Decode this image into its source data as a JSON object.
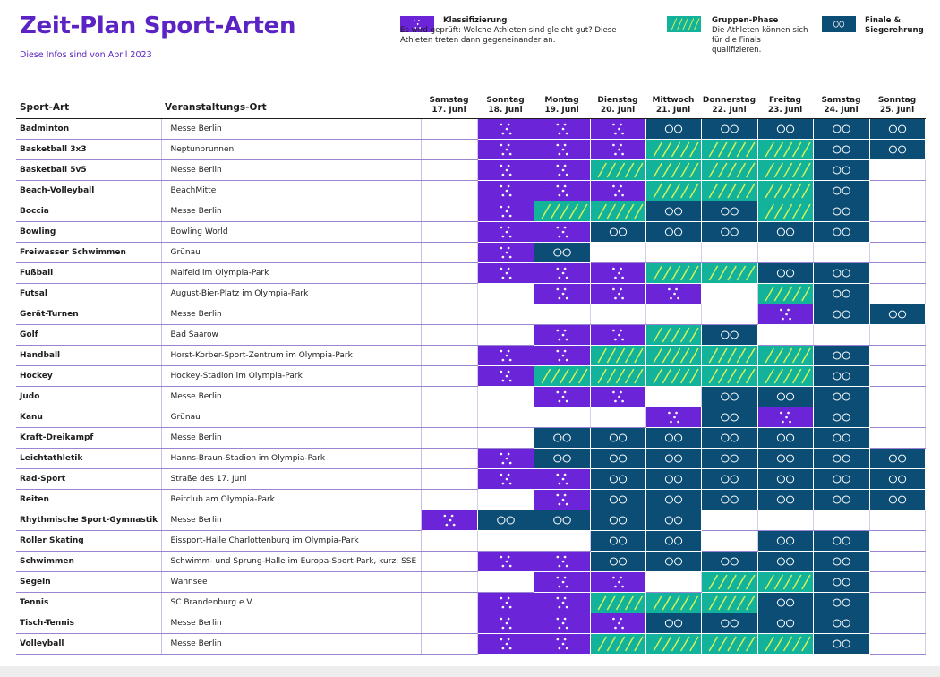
{
  "title": "Zeit-Plan Sport-Arten",
  "subtitle": "Diese Infos sind von April 2023",
  "legend": [
    {
      "type": "k",
      "title": "Klassifizierung",
      "desc": "Es wird geprüft: Welche Athleten sind gleicht gut? Diese Athleten treten dann gegeneinander an."
    },
    {
      "type": "g",
      "title": "Gruppen-Phase",
      "desc": "Die Athleten können sich für die Finals qualifizieren."
    },
    {
      "type": "f",
      "title": "Finale & Siegerehrung",
      "desc": ""
    }
  ],
  "colors": {
    "classification": "#6c24d9",
    "group": "#12b39a",
    "group_stripe": "#d7f25a",
    "final": "#0b4d75",
    "title": "#5b23c4"
  },
  "table": {
    "header_sport": "Sport-Art",
    "header_venue": "Veranstaltungs-Ort",
    "days": [
      {
        "name": "Samstag",
        "date": "17. Juni"
      },
      {
        "name": "Sonntag",
        "date": "18. Juni"
      },
      {
        "name": "Montag",
        "date": "19. Juni"
      },
      {
        "name": "Dienstag",
        "date": "20. Juni"
      },
      {
        "name": "Mittwoch",
        "date": "21. Juni"
      },
      {
        "name": "Donnerstag",
        "date": "22. Juni"
      },
      {
        "name": "Freitag",
        "date": "23. Juni"
      },
      {
        "name": "Samstag",
        "date": "24. Juni"
      },
      {
        "name": "Sonntag",
        "date": "25. Juni"
      }
    ],
    "rows": [
      {
        "sport": "Badminton",
        "venue": "Messe Berlin",
        "schedule": [
          "",
          "k",
          "k",
          "k",
          "f",
          "f",
          "f",
          "f",
          "f"
        ]
      },
      {
        "sport": "Basketball 3x3",
        "venue": "Neptunbrunnen",
        "schedule": [
          "",
          "k",
          "k",
          "k",
          "g",
          "g",
          "g",
          "f",
          "f"
        ]
      },
      {
        "sport": "Basketball 5v5",
        "venue": "Messe Berlin",
        "schedule": [
          "",
          "k",
          "k",
          "g",
          "g",
          "g",
          "g",
          "f",
          ""
        ]
      },
      {
        "sport": "Beach-Volleyball",
        "venue": "BeachMitte",
        "schedule": [
          "",
          "k",
          "k",
          "k",
          "g",
          "g",
          "g",
          "f",
          ""
        ]
      },
      {
        "sport": "Boccia",
        "venue": "Messe Berlin",
        "schedule": [
          "",
          "k",
          "g",
          "g",
          "f",
          "f",
          "g",
          "f",
          ""
        ]
      },
      {
        "sport": "Bowling",
        "venue": "Bowling World",
        "schedule": [
          "",
          "k",
          "k",
          "f",
          "f",
          "f",
          "f",
          "f",
          ""
        ]
      },
      {
        "sport": "Freiwasser Schwimmen",
        "venue": "Grünau",
        "schedule": [
          "",
          "k",
          "f",
          "",
          "",
          "",
          "",
          "",
          ""
        ]
      },
      {
        "sport": "Fußball",
        "venue": "Maifeld im Olympia-Park",
        "schedule": [
          "",
          "k",
          "k",
          "k",
          "g",
          "g",
          "f",
          "f",
          ""
        ]
      },
      {
        "sport": "Futsal",
        "venue": "August-Bier-Platz im Olympia-Park",
        "schedule": [
          "",
          "",
          "k",
          "k",
          "k",
          "",
          "g",
          "f",
          ""
        ]
      },
      {
        "sport": "Gerät-Turnen",
        "venue": "Messe Berlin",
        "schedule": [
          "",
          "",
          "",
          "",
          "",
          "",
          "k",
          "f",
          "f"
        ]
      },
      {
        "sport": "Golf",
        "venue": "Bad Saarow",
        "schedule": [
          "",
          "",
          "k",
          "k",
          "g",
          "f",
          "",
          "",
          ""
        ]
      },
      {
        "sport": "Handball",
        "venue": "Horst-Korber-Sport-Zentrum im Olympia-Park",
        "schedule": [
          "",
          "k",
          "k",
          "g",
          "g",
          "g",
          "g",
          "f",
          ""
        ]
      },
      {
        "sport": "Hockey",
        "venue": "Hockey-Stadion im Olympia-Park",
        "schedule": [
          "",
          "k",
          "g",
          "g",
          "g",
          "g",
          "g",
          "f",
          ""
        ]
      },
      {
        "sport": "Judo",
        "venue": "Messe Berlin",
        "schedule": [
          "",
          "",
          "k",
          "k",
          "",
          "f",
          "f",
          "f",
          ""
        ]
      },
      {
        "sport": "Kanu",
        "venue": "Grünau",
        "schedule": [
          "",
          "",
          "",
          "",
          "k",
          "f",
          "k",
          "f",
          ""
        ]
      },
      {
        "sport": "Kraft-Dreikampf",
        "venue": "Messe Berlin",
        "schedule": [
          "",
          "",
          "f",
          "f",
          "f",
          "f",
          "f",
          "f",
          ""
        ]
      },
      {
        "sport": "Leichtathletik",
        "venue": "Hanns-Braun-Stadion im Olympia-Park",
        "schedule": [
          "",
          "k",
          "f",
          "f",
          "f",
          "f",
          "f",
          "f",
          "f"
        ]
      },
      {
        "sport": "Rad-Sport",
        "venue": "Straße des 17. Juni",
        "schedule": [
          "",
          "k",
          "k",
          "f",
          "f",
          "f",
          "f",
          "f",
          "f"
        ]
      },
      {
        "sport": "Reiten",
        "venue": "Reitclub am Olympia-Park",
        "schedule": [
          "",
          "",
          "k",
          "f",
          "f",
          "f",
          "f",
          "f",
          "f"
        ]
      },
      {
        "sport": "Rhythmische Sport-Gymnastik",
        "venue": "Messe Berlin",
        "schedule": [
          "k",
          "f",
          "f",
          "f",
          "f",
          "",
          "",
          "",
          ""
        ]
      },
      {
        "sport": "Roller Skating",
        "venue": "Eissport-Halle Charlottenburg im Olympia-Park",
        "schedule": [
          "",
          "",
          "",
          "f",
          "f",
          "",
          "f",
          "f",
          ""
        ]
      },
      {
        "sport": "Schwimmen",
        "venue": "Schwimm- und Sprung-Halle im Europa-Sport-Park, kurz: SSE",
        "schedule": [
          "",
          "k",
          "k",
          "f",
          "f",
          "f",
          "f",
          "f",
          ""
        ]
      },
      {
        "sport": "Segeln",
        "venue": "Wannsee",
        "schedule": [
          "",
          "",
          "k",
          "k",
          "",
          "g",
          "g",
          "f",
          ""
        ]
      },
      {
        "sport": "Tennis",
        "venue": "SC Brandenburg e.V.",
        "schedule": [
          "",
          "k",
          "k",
          "g",
          "g",
          "g",
          "f",
          "f",
          ""
        ]
      },
      {
        "sport": "Tisch-Tennis",
        "venue": "Messe Berlin",
        "schedule": [
          "",
          "k",
          "k",
          "k",
          "f",
          "f",
          "f",
          "f",
          ""
        ]
      },
      {
        "sport": "Volleyball",
        "venue": "Messe Berlin",
        "schedule": [
          "",
          "k",
          "k",
          "g",
          "g",
          "g",
          "g",
          "f",
          ""
        ]
      }
    ]
  }
}
